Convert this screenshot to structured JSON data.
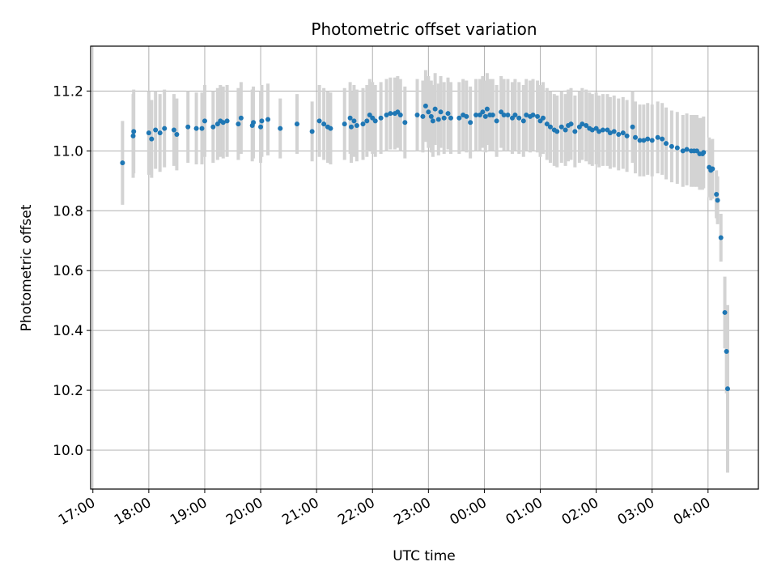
{
  "chart_data": {
    "type": "scatter",
    "title": "Photometric offset variation",
    "xlabel": "UTC time",
    "ylabel": "Photometric offset",
    "x_tick_labels": [
      "17:00",
      "18:00",
      "19:00",
      "20:00",
      "21:00",
      "22:00",
      "23:00",
      "00:00",
      "01:00",
      "02:00",
      "03:00",
      "04:00"
    ],
    "x_tick_hours": [
      0,
      1,
      2,
      3,
      4,
      5,
      6,
      7,
      8,
      9,
      10,
      11
    ],
    "y_ticks": [
      10.0,
      10.2,
      10.4,
      10.6,
      10.8,
      11.0,
      11.2
    ],
    "y_tick_labels": [
      "10.0",
      "10.2",
      "10.4",
      "10.6",
      "10.8",
      "11.0",
      "11.2"
    ],
    "xlim_hours_since_17": [
      -0.04,
      11.9
    ],
    "ylim": [
      9.87,
      11.35
    ],
    "grid": true,
    "point_color": "#1f77b4",
    "errorbar_color": "#d3d3d3",
    "series": [
      {
        "name": "offset",
        "points": [
          [
            0.53,
            10.96,
            0.14
          ],
          [
            0.72,
            11.05,
            0.14
          ],
          [
            0.73,
            11.065,
            0.14
          ],
          [
            1.0,
            11.06,
            0.14
          ],
          [
            1.05,
            11.04,
            0.13
          ],
          [
            1.12,
            11.07,
            0.13
          ],
          [
            1.2,
            11.06,
            0.13
          ],
          [
            1.28,
            11.075,
            0.13
          ],
          [
            1.45,
            11.07,
            0.12
          ],
          [
            1.5,
            11.055,
            0.12
          ],
          [
            1.7,
            11.08,
            0.12
          ],
          [
            1.85,
            11.075,
            0.12
          ],
          [
            1.95,
            11.075,
            0.12
          ],
          [
            2.0,
            11.1,
            0.12
          ],
          [
            2.15,
            11.08,
            0.12
          ],
          [
            2.23,
            11.09,
            0.12
          ],
          [
            2.28,
            11.1,
            0.12
          ],
          [
            2.33,
            11.095,
            0.12
          ],
          [
            2.4,
            11.1,
            0.12
          ],
          [
            2.6,
            11.09,
            0.12
          ],
          [
            2.65,
            11.11,
            0.12
          ],
          [
            2.85,
            11.085,
            0.12
          ],
          [
            2.87,
            11.095,
            0.12
          ],
          [
            3.0,
            11.08,
            0.12
          ],
          [
            3.02,
            11.1,
            0.12
          ],
          [
            3.13,
            11.105,
            0.12
          ],
          [
            3.35,
            11.075,
            0.1
          ],
          [
            3.65,
            11.09,
            0.1
          ],
          [
            3.92,
            11.065,
            0.1
          ],
          [
            4.05,
            11.1,
            0.12
          ],
          [
            4.13,
            11.09,
            0.12
          ],
          [
            4.2,
            11.08,
            0.12
          ],
          [
            4.25,
            11.075,
            0.12
          ],
          [
            4.5,
            11.09,
            0.12
          ],
          [
            4.6,
            11.11,
            0.12
          ],
          [
            4.62,
            11.08,
            0.12
          ],
          [
            4.67,
            11.1,
            0.12
          ],
          [
            4.72,
            11.085,
            0.12
          ],
          [
            4.83,
            11.09,
            0.12
          ],
          [
            4.9,
            11.1,
            0.12
          ],
          [
            4.95,
            11.12,
            0.12
          ],
          [
            5.0,
            11.11,
            0.12
          ],
          [
            5.05,
            11.1,
            0.12
          ],
          [
            5.15,
            11.11,
            0.12
          ],
          [
            5.25,
            11.12,
            0.12
          ],
          [
            5.32,
            11.125,
            0.12
          ],
          [
            5.4,
            11.125,
            0.12
          ],
          [
            5.45,
            11.13,
            0.12
          ],
          [
            5.5,
            11.12,
            0.12
          ],
          [
            5.58,
            11.095,
            0.12
          ],
          [
            5.8,
            11.12,
            0.12
          ],
          [
            5.9,
            11.115,
            0.12
          ],
          [
            5.95,
            11.15,
            0.12
          ],
          [
            6.0,
            11.13,
            0.12
          ],
          [
            6.05,
            11.115,
            0.12
          ],
          [
            6.08,
            11.1,
            0.12
          ],
          [
            6.12,
            11.14,
            0.12
          ],
          [
            6.18,
            11.105,
            0.12
          ],
          [
            6.22,
            11.13,
            0.12
          ],
          [
            6.28,
            11.11,
            0.12
          ],
          [
            6.35,
            11.125,
            0.12
          ],
          [
            6.4,
            11.11,
            0.12
          ],
          [
            6.55,
            11.11,
            0.12
          ],
          [
            6.62,
            11.12,
            0.12
          ],
          [
            6.68,
            11.115,
            0.12
          ],
          [
            6.75,
            11.095,
            0.12
          ],
          [
            6.85,
            11.12,
            0.12
          ],
          [
            6.92,
            11.12,
            0.12
          ],
          [
            6.97,
            11.13,
            0.12
          ],
          [
            7.02,
            11.115,
            0.12
          ],
          [
            7.05,
            11.14,
            0.12
          ],
          [
            7.1,
            11.12,
            0.12
          ],
          [
            7.15,
            11.12,
            0.12
          ],
          [
            7.22,
            11.1,
            0.12
          ],
          [
            7.3,
            11.13,
            0.12
          ],
          [
            7.35,
            11.12,
            0.12
          ],
          [
            7.42,
            11.12,
            0.12
          ],
          [
            7.5,
            11.11,
            0.12
          ],
          [
            7.55,
            11.12,
            0.12
          ],
          [
            7.62,
            11.11,
            0.12
          ],
          [
            7.7,
            11.1,
            0.12
          ],
          [
            7.75,
            11.12,
            0.12
          ],
          [
            7.82,
            11.115,
            0.12
          ],
          [
            7.87,
            11.12,
            0.12
          ],
          [
            7.95,
            11.115,
            0.12
          ],
          [
            8.0,
            11.1,
            0.12
          ],
          [
            8.05,
            11.11,
            0.12
          ],
          [
            8.12,
            11.09,
            0.12
          ],
          [
            8.18,
            11.08,
            0.12
          ],
          [
            8.25,
            11.07,
            0.12
          ],
          [
            8.3,
            11.065,
            0.12
          ],
          [
            8.38,
            11.08,
            0.12
          ],
          [
            8.45,
            11.07,
            0.12
          ],
          [
            8.5,
            11.085,
            0.12
          ],
          [
            8.55,
            11.09,
            0.12
          ],
          [
            8.62,
            11.065,
            0.12
          ],
          [
            8.7,
            11.08,
            0.12
          ],
          [
            8.75,
            11.09,
            0.12
          ],
          [
            8.82,
            11.085,
            0.12
          ],
          [
            8.88,
            11.075,
            0.12
          ],
          [
            8.93,
            11.07,
            0.12
          ],
          [
            9.0,
            11.075,
            0.12
          ],
          [
            9.05,
            11.065,
            0.12
          ],
          [
            9.12,
            11.07,
            0.12
          ],
          [
            9.2,
            11.07,
            0.12
          ],
          [
            9.25,
            11.06,
            0.12
          ],
          [
            9.32,
            11.065,
            0.12
          ],
          [
            9.4,
            11.055,
            0.12
          ],
          [
            9.48,
            11.06,
            0.12
          ],
          [
            9.55,
            11.05,
            0.12
          ],
          [
            9.65,
            11.08,
            0.12
          ],
          [
            9.7,
            11.045,
            0.12
          ],
          [
            9.78,
            11.035,
            0.12
          ],
          [
            9.85,
            11.035,
            0.12
          ],
          [
            9.92,
            11.04,
            0.12
          ],
          [
            10.0,
            11.035,
            0.12
          ],
          [
            10.1,
            11.045,
            0.12
          ],
          [
            10.18,
            11.04,
            0.12
          ],
          [
            10.25,
            11.025,
            0.12
          ],
          [
            10.35,
            11.015,
            0.12
          ],
          [
            10.45,
            11.01,
            0.12
          ],
          [
            10.55,
            11.0,
            0.12
          ],
          [
            10.62,
            11.005,
            0.12
          ],
          [
            10.7,
            11.0,
            0.12
          ],
          [
            10.75,
            11.0,
            0.12
          ],
          [
            10.8,
            11.0,
            0.12
          ],
          [
            10.85,
            10.99,
            0.12
          ],
          [
            10.9,
            10.99,
            0.12
          ],
          [
            10.92,
            10.995,
            0.12
          ],
          [
            11.02,
            10.945,
            0.1
          ],
          [
            11.05,
            10.935,
            0.1
          ],
          [
            11.08,
            10.94,
            0.1
          ],
          [
            11.15,
            10.855,
            0.08
          ],
          [
            11.17,
            10.835,
            0.08
          ],
          [
            11.23,
            10.71,
            0.08
          ],
          [
            11.3,
            10.46,
            0.12
          ],
          [
            11.33,
            10.33,
            0.14
          ],
          [
            11.35,
            10.205,
            0.28
          ]
        ]
      }
    ]
  }
}
